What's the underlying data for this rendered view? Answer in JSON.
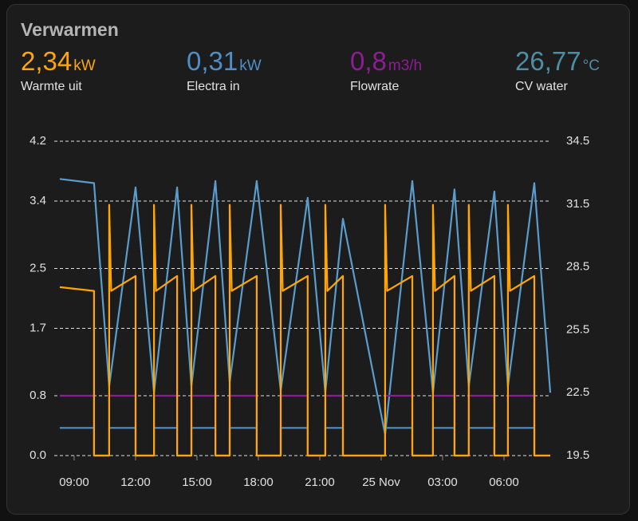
{
  "header": {
    "title": "Verwarmen",
    "entities": [
      {
        "value": "2,34",
        "unit": "kW",
        "name": "Warmte uit",
        "color": "#ffa600"
      },
      {
        "value": "0,31",
        "unit": "kW",
        "name": "Electra in",
        "color": "#4f8fc8"
      },
      {
        "value": "0,8",
        "unit": "m3/h",
        "name": "Flowrate",
        "color": "#8e1c96"
      },
      {
        "value": "26,77",
        "unit": "°C",
        "name": "CV water",
        "color": "#4e8da4"
      }
    ]
  },
  "chart_data": {
    "type": "line",
    "xlim": [
      8.3,
      32.26
    ],
    "xticks": [
      {
        "value": 9,
        "label": "09:00"
      },
      {
        "value": 12,
        "label": "12:00"
      },
      {
        "value": 15,
        "label": "15:00"
      },
      {
        "value": 18,
        "label": "18:00"
      },
      {
        "value": 21,
        "label": "21:00"
      },
      {
        "value": 24,
        "label": "25 Nov"
      },
      {
        "value": 27,
        "label": "03:00"
      },
      {
        "value": 30,
        "label": "06:00"
      }
    ],
    "ylim": [
      0,
      4.2
    ],
    "yticks": [
      {
        "value": 0,
        "label": "0.0"
      },
      0.8,
      1.7,
      2.5,
      3.4,
      4.2
    ],
    "y2lim": [
      19.5,
      34.5
    ],
    "y2ticks": [
      19.5,
      22.5,
      25.5,
      28.5,
      31.5,
      34.5
    ],
    "grid": true,
    "series": [
      {
        "name": "CV water",
        "color": "#5a9ccc",
        "axis": "y2",
        "x": [
          8.3,
          9.97,
          10.71,
          12.0,
          12.9,
          14.03,
          14.73,
          15.9,
          16.6,
          17.92,
          19.09,
          20.41,
          21.27,
          22.13,
          24.19,
          25.52,
          26.53,
          27.58,
          28.28,
          29.53,
          30.19,
          31.48,
          32.26
        ],
        "values": [
          32.7,
          32.5,
          22.8,
          32.3,
          22.5,
          32.3,
          22.8,
          32.6,
          23.0,
          32.6,
          22.6,
          31.8,
          22.5,
          30.8,
          20.5,
          32.6,
          22.5,
          32.2,
          22.8,
          32.1,
          22.8,
          32.5,
          22.5
        ]
      },
      {
        "name": "Electra in",
        "color": "#4f8fc8",
        "x": [
          8.3,
          9.97,
          9.97,
          10.71,
          10.71,
          12.0,
          12.0,
          12.9,
          12.9,
          14.03,
          14.03,
          14.73,
          14.73,
          15.9,
          15.9,
          16.6,
          16.6,
          17.92,
          17.92,
          19.09,
          19.09,
          20.41,
          20.41,
          21.27,
          21.27,
          22.13,
          22.13,
          24.19,
          24.19,
          25.52,
          25.52,
          26.53,
          26.53,
          27.58,
          27.58,
          28.28,
          28.28,
          29.53,
          29.53,
          30.19,
          30.19,
          31.48,
          31.48,
          32.26
        ],
        "values": [
          0.37,
          0.37,
          0,
          0,
          0.37,
          0.37,
          0,
          0,
          0.37,
          0.37,
          0,
          0,
          0.37,
          0.37,
          0,
          0,
          0.37,
          0.37,
          0,
          0,
          0.37,
          0.37,
          0,
          0,
          0.37,
          0.37,
          0,
          0,
          0.37,
          0.37,
          0,
          0,
          0.37,
          0.37,
          0,
          0,
          0.37,
          0.37,
          0,
          0,
          0.37,
          0.37,
          0,
          0
        ]
      },
      {
        "name": "Flowrate",
        "color": "#8e1c96",
        "x": [
          8.3,
          9.97,
          9.97,
          10.71,
          10.71,
          12.0,
          12.0,
          12.9,
          12.9,
          14.03,
          14.03,
          14.73,
          14.73,
          15.9,
          15.9,
          16.6,
          16.6,
          17.92,
          17.92,
          19.09,
          19.09,
          20.41,
          20.41,
          21.27,
          21.27,
          22.13,
          22.13,
          24.19,
          24.19,
          25.52,
          25.52,
          26.53,
          26.53,
          27.58,
          27.58,
          28.28,
          28.28,
          29.53,
          29.53,
          30.19,
          30.19,
          31.48,
          31.48,
          32.26
        ],
        "values": [
          0.8,
          0.8,
          0,
          0,
          0.8,
          0.8,
          0,
          0,
          0.8,
          0.8,
          0,
          0,
          0.8,
          0.8,
          0,
          0,
          0.8,
          0.8,
          0,
          0,
          0.8,
          0.8,
          0,
          0,
          0.8,
          0.8,
          0,
          0,
          0.8,
          0.8,
          0,
          0,
          0.8,
          0.8,
          0,
          0,
          0.8,
          0.8,
          0,
          0,
          0.8,
          0.8,
          0,
          0
        ]
      },
      {
        "name": "Warmte uit",
        "color": "#ffa600",
        "x": [
          8.3,
          9.97,
          9.97,
          10.71,
          10.71,
          10.81,
          12.0,
          12.0,
          12.9,
          12.9,
          13.0,
          14.03,
          14.03,
          14.73,
          14.73,
          14.83,
          15.9,
          15.9,
          16.6,
          16.6,
          16.7,
          17.92,
          17.92,
          19.09,
          19.09,
          19.19,
          20.41,
          20.41,
          21.27,
          21.27,
          21.37,
          22.13,
          22.13,
          24.19,
          24.19,
          24.29,
          25.52,
          25.52,
          26.53,
          26.53,
          26.63,
          27.58,
          27.58,
          28.28,
          28.28,
          28.38,
          29.53,
          29.53,
          30.19,
          30.19,
          30.29,
          31.48,
          31.48,
          32.26
        ],
        "values": [
          2.25,
          2.2,
          0,
          0,
          3.35,
          2.2,
          2.4,
          0,
          0,
          3.35,
          2.2,
          2.4,
          0,
          0,
          3.35,
          2.2,
          2.4,
          0,
          0,
          3.35,
          2.2,
          2.4,
          0,
          0,
          3.35,
          2.2,
          2.4,
          0,
          0,
          3.35,
          2.2,
          2.4,
          0,
          0,
          3.35,
          2.2,
          2.4,
          0,
          0,
          3.35,
          2.2,
          2.4,
          0,
          0,
          3.35,
          2.2,
          2.4,
          0,
          0,
          3.35,
          2.2,
          2.4,
          0,
          0
        ]
      }
    ]
  }
}
